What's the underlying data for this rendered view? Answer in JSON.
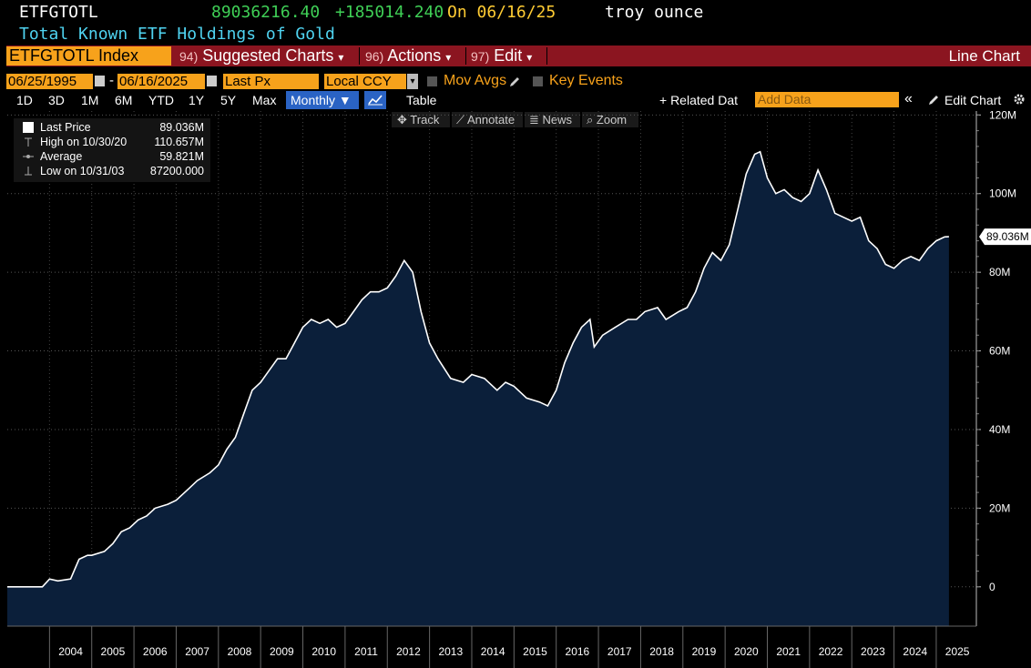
{
  "header": {
    "ticker": "ETFGTOTL",
    "last_value": "89036216.40",
    "change": "+185014.240",
    "on_date": "On 06/16/25",
    "unit": "troy ounce",
    "subtitle": "Total Known ETF Holdings of Gold"
  },
  "menubar": {
    "security": "ETFGTOTL Index",
    "suggested_num": "94)",
    "suggested_label": "Suggested Charts",
    "actions_num": "96)",
    "actions_label": "Actions",
    "edit_num": "97)",
    "edit_label": "Edit",
    "dropdown_glyph": "▾",
    "chart_type": "Line Chart"
  },
  "options": {
    "start_date": "06/25/1995",
    "end_date": "06/16/2025",
    "date_sep": "-",
    "field": "Last Px",
    "currency": "Local CCY",
    "mov_avgs": "Mov Avgs",
    "key_events": "Key Events"
  },
  "ranges": [
    "1D",
    "3D",
    "1M",
    "6M",
    "YTD",
    "1Y",
    "5Y",
    "Max"
  ],
  "periodicity": "Monthly ▼",
  "table_label": "Table",
  "related_data": "+ Related Dat",
  "add_data_placeholder": "Add Data",
  "collapse_glyph": "«",
  "edit_chart": "Edit Chart",
  "tools": [
    "Track",
    "Annotate",
    "News",
    "Zoom"
  ],
  "legend": {
    "last_label": "Last Price",
    "last_value": "89.036M",
    "high_label": "High on 10/30/20",
    "high_value": "110.657M",
    "avg_label": "Average",
    "avg_value": "59.821M",
    "low_label": "Low on 10/31/03",
    "low_value": "87200.000"
  },
  "colors": {
    "orange": "#f7a21b",
    "bar_red": "#8b1520",
    "green": "#3fcf56",
    "cyan": "#4fd3f0",
    "area_fill": "#0b1f3a",
    "line": "#ffffff"
  },
  "chart_data": {
    "type": "area",
    "title": "Total Known ETF Holdings of Gold",
    "unit": "troy ounce",
    "x_labels": [
      "2004",
      "2005",
      "2006",
      "2007",
      "2008",
      "2009",
      "2010",
      "2011",
      "2012",
      "2013",
      "2014",
      "2015",
      "2016",
      "2017",
      "2018",
      "2019",
      "2020",
      "2021",
      "2022",
      "2023",
      "2024",
      "2025"
    ],
    "y_ticks": [
      0,
      20,
      40,
      60,
      80,
      100,
      120
    ],
    "y_tick_labels": [
      "0",
      "20M",
      "40M",
      "60M",
      "80M",
      "100M",
      "120M"
    ],
    "ylim": [
      -10,
      121
    ],
    "xlim": [
      2003.0,
      2025.95
    ],
    "y_unit": "M troy oz",
    "last_label": "89.036M",
    "last_value": 89.036,
    "points": [
      [
        2003.0,
        0
      ],
      [
        2003.5,
        0
      ],
      [
        2003.83,
        0
      ],
      [
        2004.0,
        2
      ],
      [
        2004.2,
        1.5
      ],
      [
        2004.5,
        2
      ],
      [
        2004.7,
        7
      ],
      [
        2004.9,
        8
      ],
      [
        2005.0,
        8
      ],
      [
        2005.3,
        9
      ],
      [
        2005.5,
        11
      ],
      [
        2005.7,
        14
      ],
      [
        2005.9,
        15
      ],
      [
        2006.1,
        17
      ],
      [
        2006.3,
        18
      ],
      [
        2006.5,
        20
      ],
      [
        2006.8,
        21
      ],
      [
        2007.0,
        22
      ],
      [
        2007.3,
        25
      ],
      [
        2007.5,
        27
      ],
      [
        2007.8,
        29
      ],
      [
        2008.0,
        31
      ],
      [
        2008.2,
        35
      ],
      [
        2008.4,
        38
      ],
      [
        2008.6,
        44
      ],
      [
        2008.8,
        50
      ],
      [
        2009.0,
        52
      ],
      [
        2009.2,
        55
      ],
      [
        2009.4,
        58
      ],
      [
        2009.6,
        58
      ],
      [
        2009.8,
        62
      ],
      [
        2010.0,
        66
      ],
      [
        2010.2,
        68
      ],
      [
        2010.4,
        67
      ],
      [
        2010.6,
        68
      ],
      [
        2010.8,
        66
      ],
      [
        2011.0,
        67
      ],
      [
        2011.2,
        70
      ],
      [
        2011.4,
        73
      ],
      [
        2011.6,
        75
      ],
      [
        2011.8,
        75
      ],
      [
        2012.0,
        76
      ],
      [
        2012.2,
        79
      ],
      [
        2012.4,
        83
      ],
      [
        2012.6,
        80
      ],
      [
        2012.8,
        70
      ],
      [
        2013.0,
        62
      ],
      [
        2013.2,
        58
      ],
      [
        2013.5,
        53
      ],
      [
        2013.8,
        52
      ],
      [
        2014.0,
        54
      ],
      [
        2014.3,
        53
      ],
      [
        2014.6,
        50
      ],
      [
        2014.8,
        52
      ],
      [
        2015.0,
        51
      ],
      [
        2015.3,
        48
      ],
      [
        2015.6,
        47
      ],
      [
        2015.8,
        46
      ],
      [
        2016.0,
        50
      ],
      [
        2016.2,
        57
      ],
      [
        2016.4,
        62
      ],
      [
        2016.6,
        66
      ],
      [
        2016.8,
        68
      ],
      [
        2016.9,
        61
      ],
      [
        2017.1,
        64
      ],
      [
        2017.4,
        66
      ],
      [
        2017.7,
        68
      ],
      [
        2017.9,
        68
      ],
      [
        2018.1,
        70
      ],
      [
        2018.4,
        71
      ],
      [
        2018.6,
        68
      ],
      [
        2018.9,
        70
      ],
      [
        2019.1,
        71
      ],
      [
        2019.3,
        75
      ],
      [
        2019.5,
        81
      ],
      [
        2019.7,
        85
      ],
      [
        2019.9,
        83
      ],
      [
        2020.1,
        87
      ],
      [
        2020.3,
        96
      ],
      [
        2020.5,
        105
      ],
      [
        2020.7,
        110
      ],
      [
        2020.83,
        110.657
      ],
      [
        2021.0,
        104
      ],
      [
        2021.2,
        100
      ],
      [
        2021.4,
        101
      ],
      [
        2021.6,
        99
      ],
      [
        2021.8,
        98
      ],
      [
        2022.0,
        100
      ],
      [
        2022.2,
        106
      ],
      [
        2022.4,
        101
      ],
      [
        2022.6,
        95
      ],
      [
        2022.8,
        94
      ],
      [
        2023.0,
        93
      ],
      [
        2023.2,
        94
      ],
      [
        2023.4,
        88
      ],
      [
        2023.6,
        86
      ],
      [
        2023.8,
        82
      ],
      [
        2024.0,
        81
      ],
      [
        2024.2,
        83
      ],
      [
        2024.4,
        84
      ],
      [
        2024.6,
        83
      ],
      [
        2024.8,
        86
      ],
      [
        2025.0,
        88
      ],
      [
        2025.2,
        89
      ],
      [
        2025.3,
        89.036
      ]
    ]
  }
}
